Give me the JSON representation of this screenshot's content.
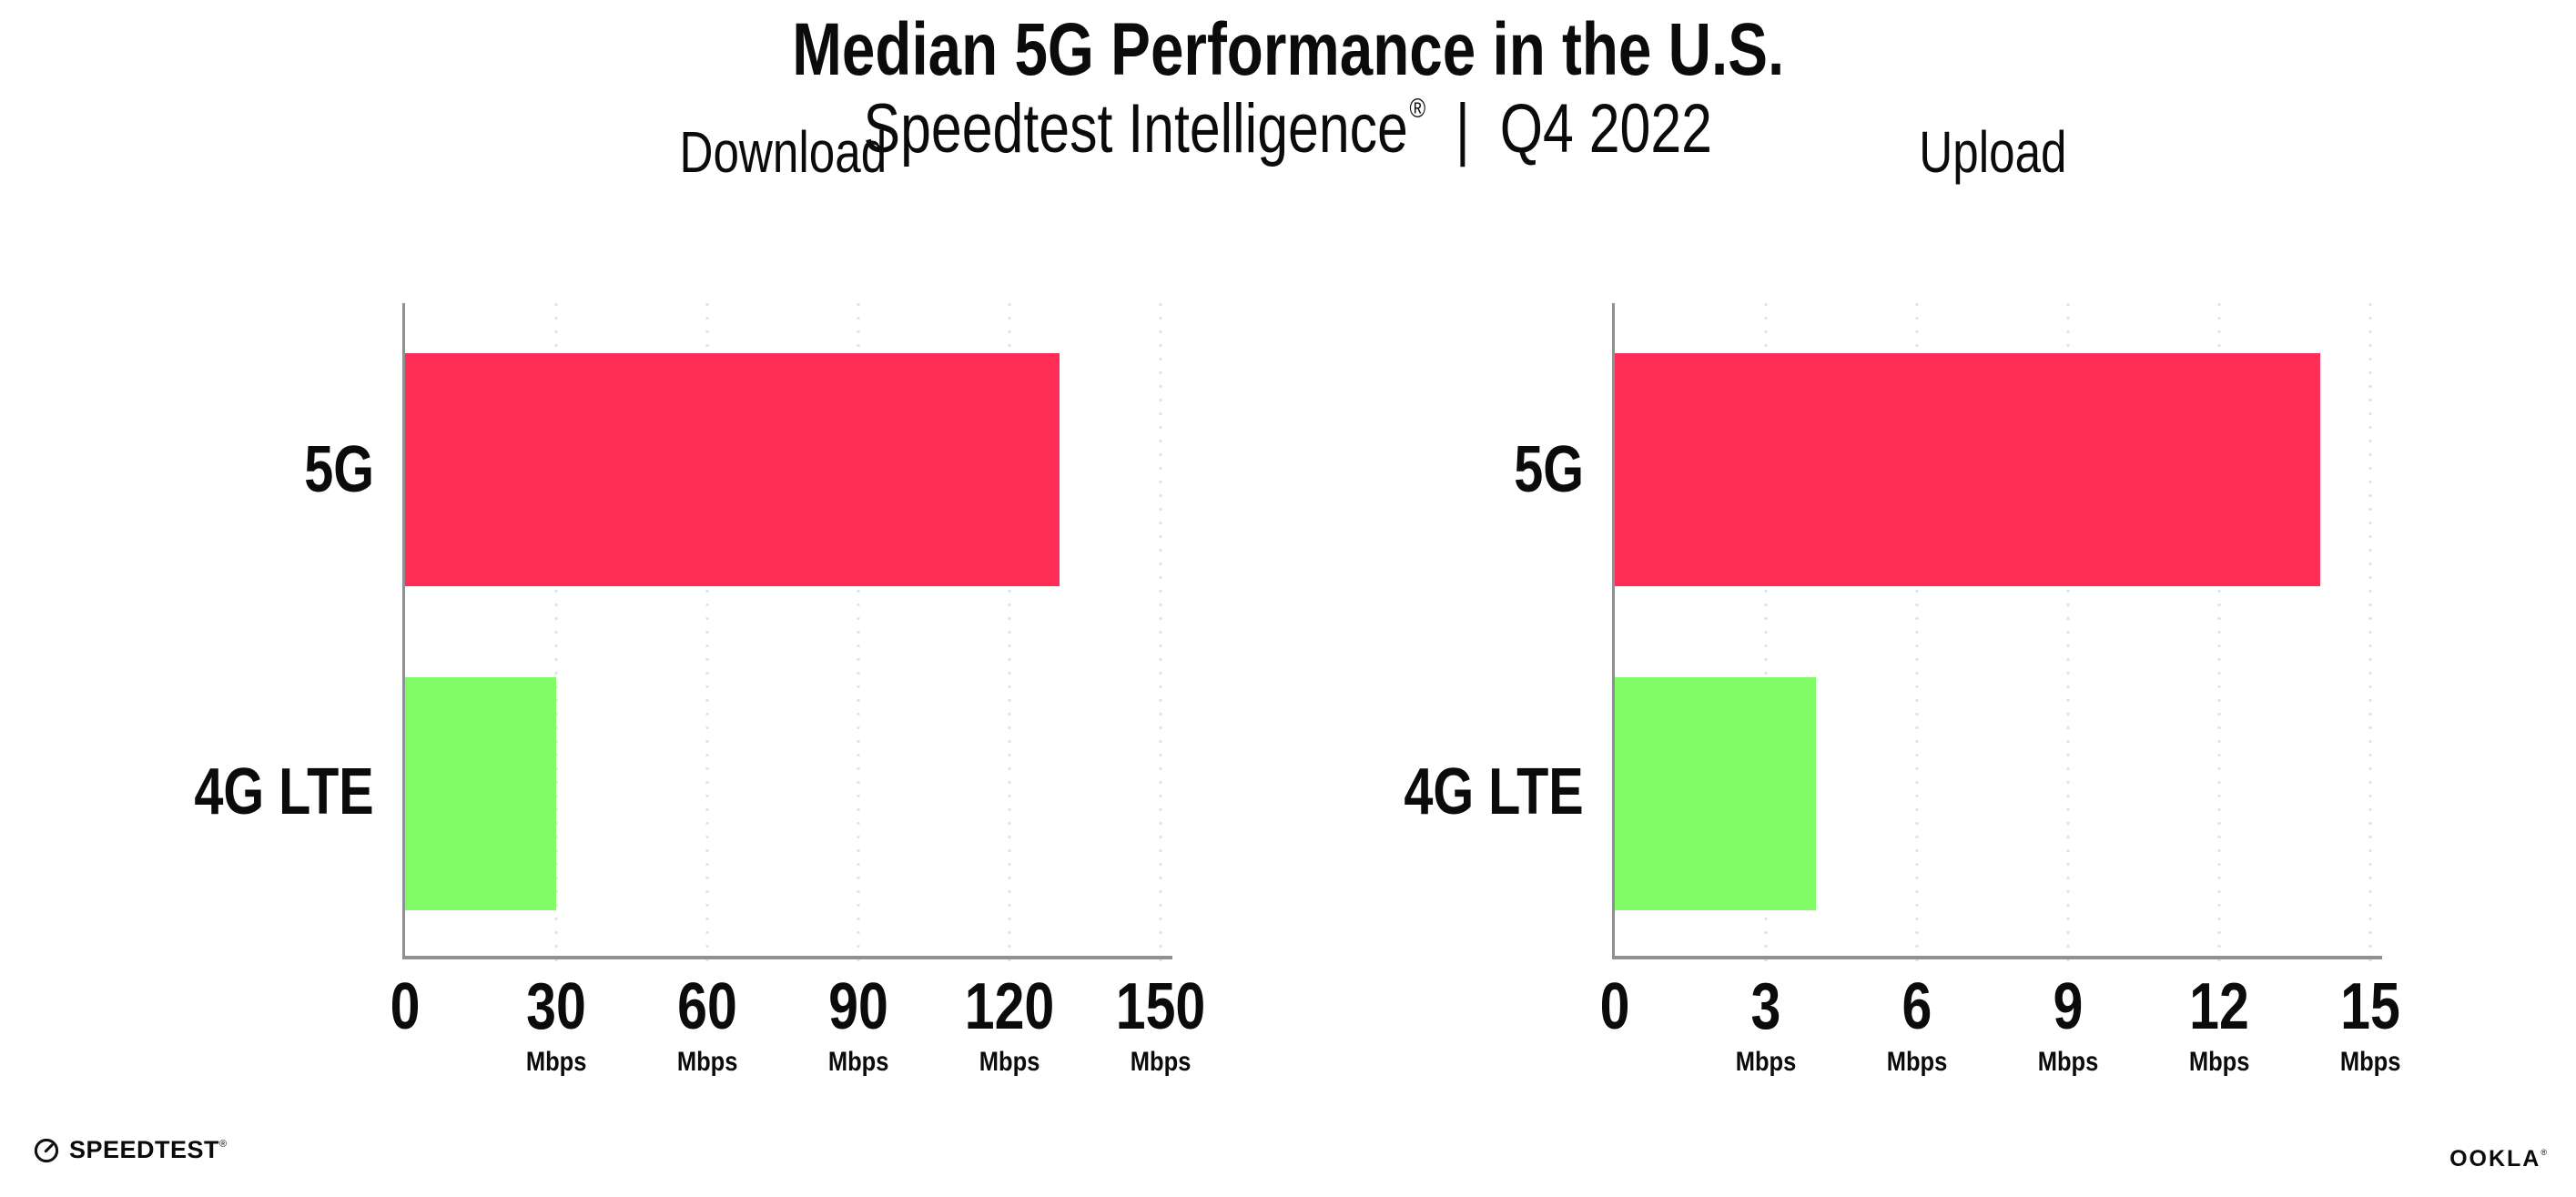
{
  "header": {
    "title": "Median 5G Performance in the U.S.",
    "subtitle_brand": "Speedtest Intelligence",
    "subtitle_reg": "®",
    "subtitle_divider": "|",
    "subtitle_period": "Q4 2022"
  },
  "chart_data": [
    {
      "type": "bar",
      "orientation": "horizontal",
      "title": "Download",
      "categories": [
        "5G",
        "4G LTE"
      ],
      "values": [
        130,
        30
      ],
      "unit": "Mbps",
      "xlim": [
        0,
        150
      ],
      "xticks": [
        0,
        30,
        60,
        90,
        120,
        150
      ],
      "xticklabels": [
        "0",
        "30",
        "60",
        "90",
        "120",
        "150"
      ],
      "tick_unit": "Mbps",
      "series_colors": [
        "#ff2e56",
        "#82fc66"
      ],
      "grid": "vertical dotted gridlines at each tick, no gridline at 0",
      "legend": "none"
    },
    {
      "type": "bar",
      "orientation": "horizontal",
      "title": "Upload",
      "categories": [
        "5G",
        "4G LTE"
      ],
      "values": [
        14,
        4
      ],
      "unit": "Mbps",
      "xlim": [
        0,
        15
      ],
      "xticks": [
        0,
        3,
        6,
        9,
        12,
        15
      ],
      "xticklabels": [
        "0",
        "3",
        "6",
        "9",
        "12",
        "15"
      ],
      "tick_unit": "Mbps",
      "series_colors": [
        "#ff2e56",
        "#82fc66"
      ],
      "grid": "vertical dotted gridlines at each tick, no gridline at 0",
      "legend": "none"
    }
  ],
  "footer": {
    "speedtest_wordmark": "SPEEDTEST",
    "speedtest_mark": "®",
    "ookla_wordmark": "OOKLA",
    "ookla_mark": "®"
  },
  "colors": {
    "bar_5g_pink": "#ff2e56",
    "bar_4g_green": "#82fc66",
    "axis_gray": "#8f9094",
    "grid_dot_gray": "#e2e2ea",
    "text_black": "#0b0b0c"
  }
}
